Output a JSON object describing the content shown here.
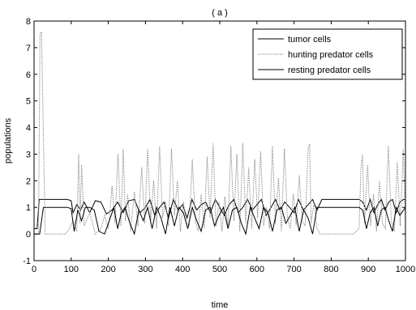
{
  "chart_data": {
    "type": "line",
    "title": "( a )",
    "xlabel": "time",
    "ylabel": "populations",
    "xlim": [
      0,
      1000
    ],
    "ylim": [
      -1,
      8
    ],
    "xticks": [
      0,
      100,
      200,
      300,
      400,
      500,
      600,
      700,
      800,
      900,
      1000
    ],
    "yticks": [
      -1,
      0,
      1,
      2,
      3,
      4,
      5,
      6,
      7,
      8
    ],
    "grid": false,
    "legend_position": "top-right",
    "series": [
      {
        "name": "tumor cells",
        "color": "#000000",
        "style": "solid",
        "x": [
          0,
          8,
          14,
          20,
          28,
          40,
          60,
          80,
          90,
          100,
          105,
          115,
          125,
          135,
          150,
          165,
          180,
          195,
          210,
          225,
          240,
          255,
          270,
          285,
          300,
          312,
          325,
          338,
          350,
          362,
          375,
          388,
          400,
          412,
          425,
          438,
          450,
          462,
          475,
          488,
          500,
          512,
          525,
          538,
          550,
          562,
          575,
          588,
          600,
          612,
          625,
          638,
          650,
          662,
          675,
          688,
          700,
          712,
          725,
          738,
          750,
          762,
          775,
          790,
          800,
          830,
          860,
          875,
          885,
          895,
          905,
          915,
          925,
          935,
          945,
          955,
          965,
          975,
          985,
          995,
          1000
        ],
        "values": [
          0.2,
          0.2,
          1.3,
          1.3,
          1.3,
          1.3,
          1.3,
          1.3,
          1.3,
          1.25,
          0.8,
          1.1,
          0.9,
          1.2,
          0.8,
          1.25,
          1.2,
          0.75,
          0.9,
          1.2,
          0.8,
          1.25,
          1.3,
          0.8,
          1.0,
          1.3,
          0.7,
          1.0,
          1.2,
          0.6,
          1.3,
          0.9,
          1.1,
          0.6,
          1.3,
          0.9,
          1.1,
          1.2,
          0.8,
          1.3,
          1.0,
          0.7,
          1.1,
          1.3,
          0.8,
          1.0,
          1.3,
          0.9,
          1.1,
          1.3,
          0.7,
          1.0,
          1.3,
          0.9,
          1.2,
          1.0,
          0.8,
          1.3,
          0.9,
          1.1,
          1.3,
          0.9,
          1.3,
          1.3,
          1.3,
          1.3,
          1.3,
          1.3,
          1.2,
          0.9,
          1.3,
          0.8,
          1.1,
          1.3,
          0.9,
          1.2,
          1.3,
          0.8,
          1.2,
          1.3,
          1.3
        ]
      },
      {
        "name": "hunting predator cells",
        "color": "#8c8c8c",
        "style": "dotted",
        "x": [
          0,
          12,
          16,
          20,
          30,
          60,
          85,
          95,
          105,
          115,
          120,
          124,
          128,
          135,
          150,
          165,
          180,
          190,
          200,
          210,
          218,
          226,
          234,
          240,
          246,
          252,
          260,
          270,
          280,
          290,
          298,
          306,
          314,
          322,
          330,
          338,
          346,
          354,
          362,
          370,
          378,
          386,
          394,
          402,
          410,
          418,
          426,
          434,
          442,
          450,
          458,
          466,
          474,
          482,
          490,
          498,
          506,
          514,
          522,
          530,
          538,
          546,
          554,
          562,
          570,
          578,
          586,
          594,
          602,
          610,
          618,
          626,
          634,
          642,
          650,
          658,
          666,
          674,
          682,
          690,
          698,
          706,
          714,
          722,
          730,
          738,
          742,
          746,
          754,
          762,
          770,
          790,
          820,
          860,
          875,
          880,
          884,
          890,
          898,
          906,
          914,
          922,
          930,
          938,
          946,
          954,
          962,
          970,
          978,
          986,
          994,
          1000
        ],
        "values": [
          0.0,
          0.0,
          7.5,
          7.6,
          0.0,
          0.0,
          0.0,
          0.2,
          0.5,
          0.1,
          3.0,
          0.4,
          2.6,
          0.3,
          0.8,
          0.0,
          0.2,
          0.7,
          0.2,
          1.8,
          0.4,
          3.0,
          0.3,
          3.2,
          0.5,
          1.5,
          0.1,
          1.6,
          0.3,
          2.5,
          0.4,
          3.2,
          0.5,
          2.0,
          0.2,
          3.3,
          0.6,
          1.2,
          0.3,
          3.2,
          0.7,
          2.0,
          0.1,
          1.2,
          0.4,
          0.3,
          2.8,
          0.5,
          0.1,
          1.5,
          0.2,
          2.9,
          0.6,
          3.4,
          0.3,
          1.2,
          0.1,
          1.4,
          0.2,
          3.3,
          0.5,
          3.0,
          0.1,
          3.4,
          0.4,
          2.5,
          0.2,
          2.8,
          0.6,
          3.1,
          0.3,
          1.0,
          0.2,
          3.3,
          0.4,
          2.1,
          0.1,
          3.2,
          0.6,
          0.2,
          1.5,
          0.3,
          2.2,
          0.5,
          0.3,
          3.2,
          3.4,
          0.4,
          1.2,
          0.2,
          0.0,
          0.0,
          0.0,
          0.0,
          0.2,
          2.4,
          3.0,
          0.4,
          2.6,
          0.3,
          1.5,
          0.1,
          2.0,
          0.4,
          0.2,
          3.3,
          0.5,
          0.1,
          2.7,
          0.3,
          3.2,
          0.4
        ]
      },
      {
        "name": "resting predator cells",
        "color": "#000000",
        "style": "solid",
        "x": [
          0,
          15,
          25,
          40,
          70,
          90,
          100,
          108,
          118,
          128,
          138,
          150,
          162,
          175,
          190,
          205,
          215,
          225,
          235,
          245,
          258,
          270,
          282,
          294,
          306,
          318,
          330,
          342,
          354,
          366,
          378,
          390,
          402,
          414,
          426,
          438,
          450,
          462,
          474,
          486,
          498,
          510,
          522,
          534,
          546,
          558,
          570,
          582,
          594,
          606,
          618,
          630,
          642,
          654,
          666,
          678,
          690,
          702,
          714,
          726,
          738,
          750,
          762,
          775,
          785,
          800,
          830,
          860,
          875,
          885,
          895,
          905,
          915,
          925,
          935,
          945,
          955,
          965,
          975,
          985,
          995,
          1000
        ],
        "values": [
          0.0,
          0.0,
          1.0,
          1.0,
          1.0,
          1.0,
          0.95,
          0.1,
          0.9,
          0.5,
          1.0,
          1.0,
          0.9,
          0.1,
          0.0,
          0.6,
          1.0,
          0.2,
          0.8,
          1.0,
          0.4,
          0.0,
          0.9,
          0.5,
          1.0,
          0.2,
          1.0,
          0.6,
          0.0,
          1.0,
          0.3,
          1.0,
          0.8,
          0.2,
          1.0,
          0.5,
          0.1,
          0.9,
          1.0,
          0.3,
          0.7,
          1.0,
          0.2,
          0.9,
          1.0,
          0.4,
          0.0,
          1.0,
          0.6,
          0.2,
          1.0,
          0.8,
          0.1,
          0.9,
          1.0,
          0.4,
          0.7,
          1.0,
          0.1,
          0.9,
          0.6,
          0.0,
          1.0,
          1.0,
          1.0,
          1.0,
          1.0,
          1.0,
          1.0,
          0.9,
          0.2,
          0.8,
          1.0,
          0.3,
          0.9,
          1.0,
          0.5,
          0.1,
          1.0,
          0.7,
          0.9,
          1.0
        ]
      }
    ]
  }
}
